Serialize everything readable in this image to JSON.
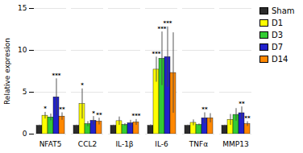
{
  "chart_data": {
    "type": "bar",
    "ylabel": "Relative expresion",
    "categories": [
      "NFAT5",
      "CCL2",
      "IL-1β",
      "IL-6",
      "TNFα",
      "MMP13"
    ],
    "series": [
      {
        "name": "Sham",
        "color": "#2b2b2b",
        "values": [
          1.0,
          1.0,
          1.0,
          1.0,
          1.0,
          1.0
        ],
        "errors": [
          0.08,
          0.08,
          0.08,
          0.12,
          0.08,
          0.08
        ]
      },
      {
        "name": "D1",
        "color": "#ffff00",
        "values": [
          2.2,
          3.6,
          1.55,
          7.7,
          1.35,
          1.7
        ],
        "errors": [
          0.4,
          1.8,
          0.5,
          1.5,
          0.35,
          0.65
        ]
      },
      {
        "name": "D3",
        "color": "#33cc33",
        "values": [
          2.0,
          1.2,
          1.1,
          9.0,
          1.1,
          2.3
        ],
        "errors": [
          0.4,
          0.3,
          0.15,
          3.2,
          0.12,
          0.75
        ]
      },
      {
        "name": "D7",
        "color": "#2222cc",
        "values": [
          4.4,
          1.6,
          1.3,
          9.2,
          1.9,
          2.5
        ],
        "errors": [
          2.2,
          0.5,
          0.35,
          3.6,
          0.65,
          0.75
        ]
      },
      {
        "name": "D14",
        "color": "#ff8800",
        "values": [
          2.1,
          1.5,
          1.4,
          7.3,
          1.9,
          1.2
        ],
        "errors": [
          0.45,
          0.4,
          0.35,
          4.8,
          0.55,
          0.28
        ]
      }
    ],
    "annotations": [
      {
        "category": "NFAT5",
        "series": "D1",
        "text": "*"
      },
      {
        "category": "NFAT5",
        "series": "D7",
        "text": "***"
      },
      {
        "category": "NFAT5",
        "series": "D14",
        "text": "**"
      },
      {
        "category": "CCL2",
        "series": "D1",
        "text": "*"
      },
      {
        "category": "CCL2",
        "series": "D7",
        "text": "*"
      },
      {
        "category": "CCL2",
        "series": "D14",
        "text": "**"
      },
      {
        "category": "IL-1β",
        "series": "D14",
        "text": "***"
      },
      {
        "category": "IL-6",
        "series": "D1",
        "text": "***"
      },
      {
        "category": "IL-6",
        "series": "D3",
        "text": "***"
      },
      {
        "category": "IL-6",
        "series": "D7",
        "text": "***"
      },
      {
        "category": "TNFα",
        "series": "D7",
        "text": "**"
      },
      {
        "category": "MMP13",
        "series": "D7",
        "text": "**"
      },
      {
        "category": "MMP13",
        "series": "D14",
        "text": "**"
      }
    ],
    "ylim": [
      0,
      15
    ],
    "yticks": [
      0,
      5,
      10,
      15
    ],
    "grid": true,
    "legend": "right"
  }
}
